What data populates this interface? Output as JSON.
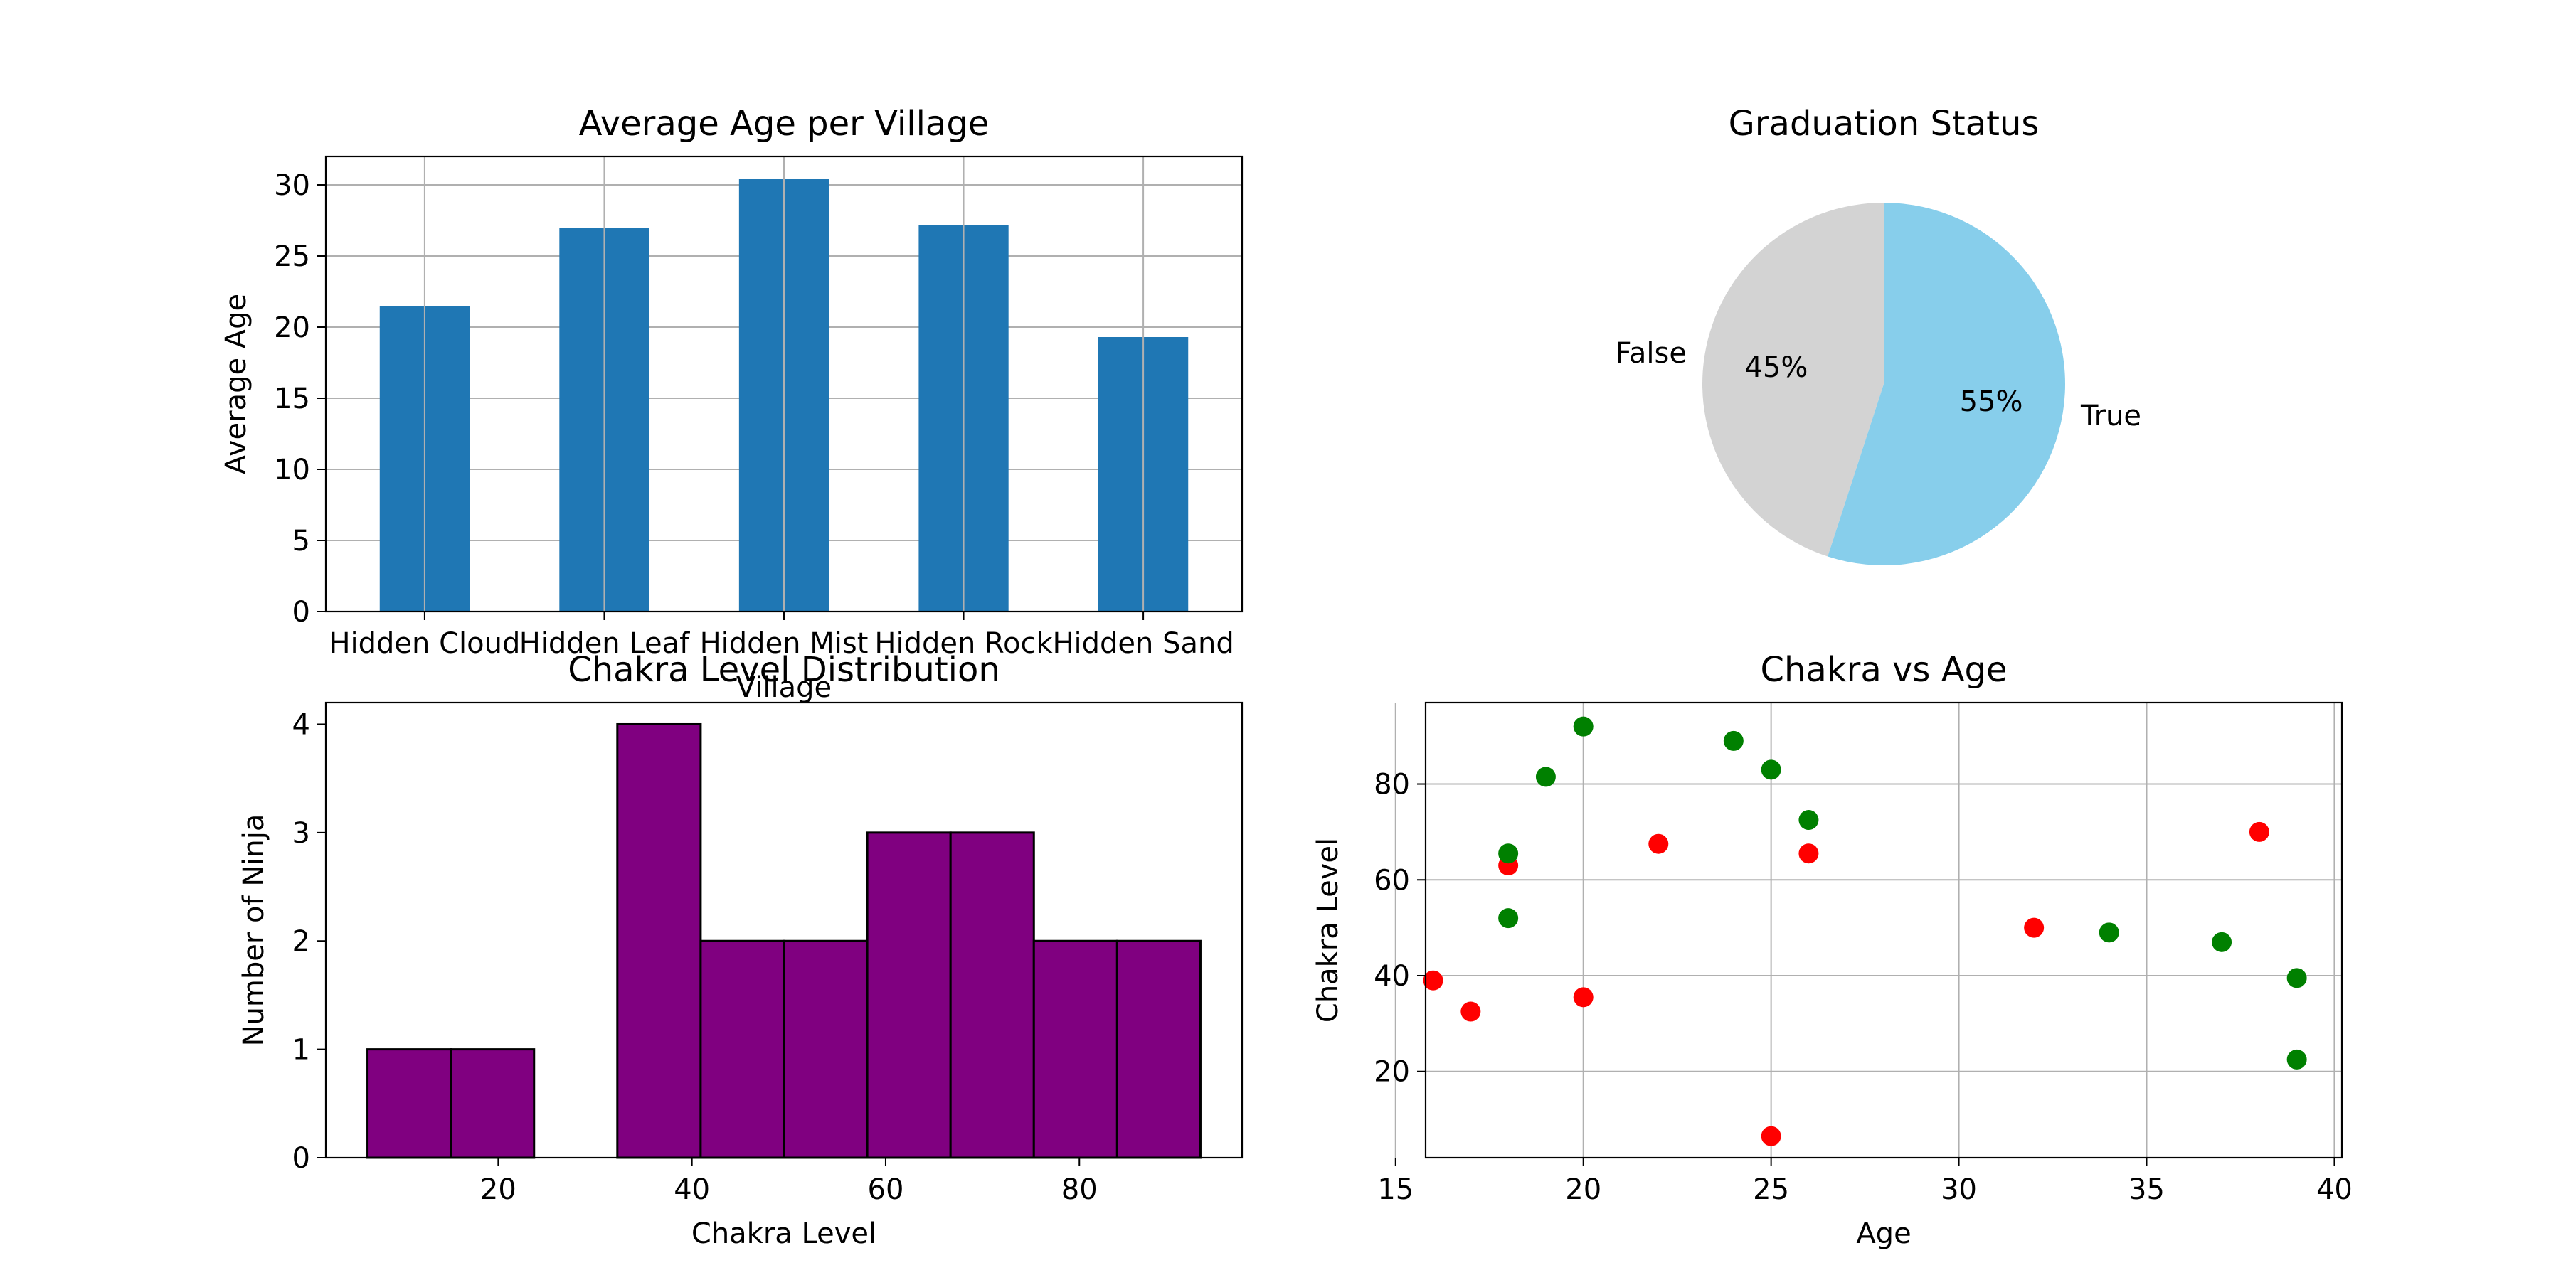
{
  "charts": {
    "bar": {
      "type": "bar",
      "title": "Average Age per Village",
      "xlabel": "Village",
      "ylabel": "Average Age",
      "categories": [
        "Hidden Cloud",
        "Hidden Leaf",
        "Hidden Mist",
        "Hidden Rock",
        "Hidden Sand"
      ],
      "values": [
        21.5,
        27.0,
        30.4,
        27.2,
        19.3
      ],
      "ylim": [
        0,
        32
      ],
      "yticks": [
        0,
        5,
        10,
        15,
        20,
        25,
        30
      ],
      "grid": true,
      "color": "#1f77b4"
    },
    "pie": {
      "type": "pie",
      "title": "Graduation Status",
      "slices": [
        {
          "label": "False",
          "value": 45,
          "pct_label": "45%",
          "color": "#d3d3d3"
        },
        {
          "label": "True",
          "value": 55,
          "pct_label": "55%",
          "color": "#87ceeb"
        }
      ]
    },
    "hist": {
      "type": "bar",
      "title": "Chakra Level Distribution",
      "xlabel": "Chakra Level",
      "ylabel": "Number of Ninja",
      "bins": [
        6.5,
        15.1,
        23.7,
        32.3,
        40.9,
        49.5,
        58.1,
        66.7,
        75.3,
        83.9,
        92.5
      ],
      "counts": [
        1,
        1,
        0,
        4,
        2,
        2,
        3,
        3,
        2,
        2
      ],
      "xlim": [
        2.2,
        96.8
      ],
      "xticks": [
        20,
        40,
        60,
        80
      ],
      "ylim": [
        0,
        4.2
      ],
      "yticks": [
        0,
        1,
        2,
        3,
        4
      ],
      "color": "#800080",
      "edge_color": "#000000"
    },
    "scatter": {
      "type": "scatter",
      "title": "Chakra vs Age",
      "xlabel": "Age",
      "ylabel": "Chakra Level",
      "xlim": [
        15.8,
        40.2
      ],
      "ylim": [
        2.0,
        97.0
      ],
      "xticks": [
        15,
        20,
        25,
        30,
        35,
        40
      ],
      "yticks": [
        20,
        40,
        60,
        80
      ],
      "grid": true,
      "points": [
        {
          "x": 16,
          "y": 39,
          "c": "#ff0000"
        },
        {
          "x": 17,
          "y": 32.5,
          "c": "#ff0000"
        },
        {
          "x": 18,
          "y": 63,
          "c": "#ff0000"
        },
        {
          "x": 18,
          "y": 65.5,
          "c": "#008000"
        },
        {
          "x": 18,
          "y": 52,
          "c": "#008000"
        },
        {
          "x": 19,
          "y": 81.5,
          "c": "#008000"
        },
        {
          "x": 20,
          "y": 92,
          "c": "#008000"
        },
        {
          "x": 20,
          "y": 35.5,
          "c": "#ff0000"
        },
        {
          "x": 22,
          "y": 67.5,
          "c": "#ff0000"
        },
        {
          "x": 24,
          "y": 89,
          "c": "#008000"
        },
        {
          "x": 25,
          "y": 83,
          "c": "#008000"
        },
        {
          "x": 25,
          "y": 6.5,
          "c": "#ff0000"
        },
        {
          "x": 26,
          "y": 72.5,
          "c": "#008000"
        },
        {
          "x": 26,
          "y": 65.5,
          "c": "#ff0000"
        },
        {
          "x": 32,
          "y": 50,
          "c": "#ff0000"
        },
        {
          "x": 34,
          "y": 49,
          "c": "#008000"
        },
        {
          "x": 37,
          "y": 47,
          "c": "#008000"
        },
        {
          "x": 38,
          "y": 70,
          "c": "#ff0000"
        },
        {
          "x": 39,
          "y": 39.5,
          "c": "#008000"
        },
        {
          "x": 39,
          "y": 22.5,
          "c": "#008000"
        }
      ]
    }
  }
}
